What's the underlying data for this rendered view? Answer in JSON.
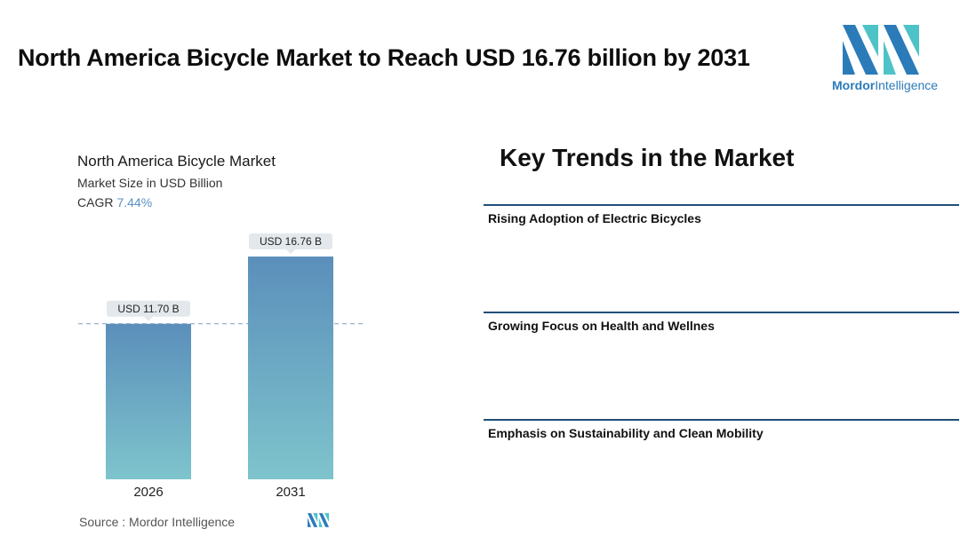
{
  "header": {
    "title": "North America Bicycle Market to Reach USD 16.76 billion by 2031"
  },
  "logo": {
    "brand_bold": "Mordor",
    "brand_light": "Intelligence",
    "icon": "mordor-intelligence-logo"
  },
  "chart_panel": {
    "title": "North America Bicycle Market",
    "subtitle": "Market Size in USD Billion",
    "cagr_label": "CAGR",
    "cagr_value": "7.44%",
    "source": "Source :  Mordor Intelligence"
  },
  "chart_data": {
    "type": "bar",
    "title": "North America Bicycle Market",
    "ylabel": "Market Size in USD Billion",
    "categories": [
      "2026",
      "2031"
    ],
    "values": [
      11.7,
      16.76
    ],
    "data_labels": [
      "USD 11.70 B",
      "USD 16.76 B"
    ],
    "reference_line": 11.7,
    "ylim": [
      0,
      19.5
    ],
    "grid": false,
    "colors": {
      "bar_top": "#5b8fbb",
      "bar_bottom": "#7ec4cc",
      "label_bg": "#e3e8ec",
      "ref_line": "#7aa3c4"
    }
  },
  "trends": {
    "heading": "Key Trends in the Market",
    "items": [
      "Rising Adoption of Electric Bicycles",
      "Growing Focus on Health and Wellnes",
      "Emphasis on Sustainability and Clean Mobility"
    ]
  },
  "colors": {
    "accent": "#1f4e79",
    "brand": "#2b7bb9"
  }
}
